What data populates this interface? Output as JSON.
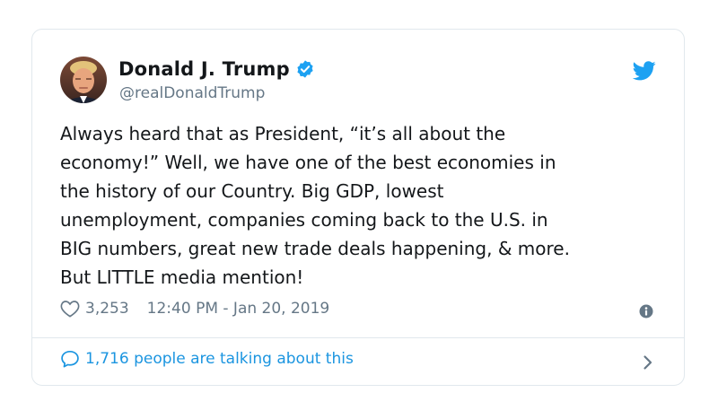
{
  "author": {
    "name": "Donald J. Trump",
    "handle": "@realDonaldTrump",
    "verified": true
  },
  "tweet": {
    "text": "Always heard that as President, “it’s all about the\neconomy!” Well, we have one of the best economies in\nthe history of our Country. Big GDP, lowest\nunemployment, companies coming back to the U.S. in\nBIG numbers, great new trade deals happening, & more.\nBut LITTLE media mention!",
    "likes": "3,253",
    "timestamp": "12:40 PM - Jan 20, 2019"
  },
  "footer": {
    "talking_text": "1,716 people are talking about this"
  },
  "icons": {
    "like": "heart-icon",
    "info": "info-icon",
    "reply": "speech-bubble-icon",
    "brand": "twitter-bird-icon",
    "verified": "verified-badge-icon",
    "more": "chevron-right-icon"
  },
  "colors": {
    "brand_blue": "#1da1f2",
    "link_blue": "#1b95e0",
    "secondary_text": "#657786",
    "primary_text": "#14171a",
    "border": "#e1e8ed"
  }
}
